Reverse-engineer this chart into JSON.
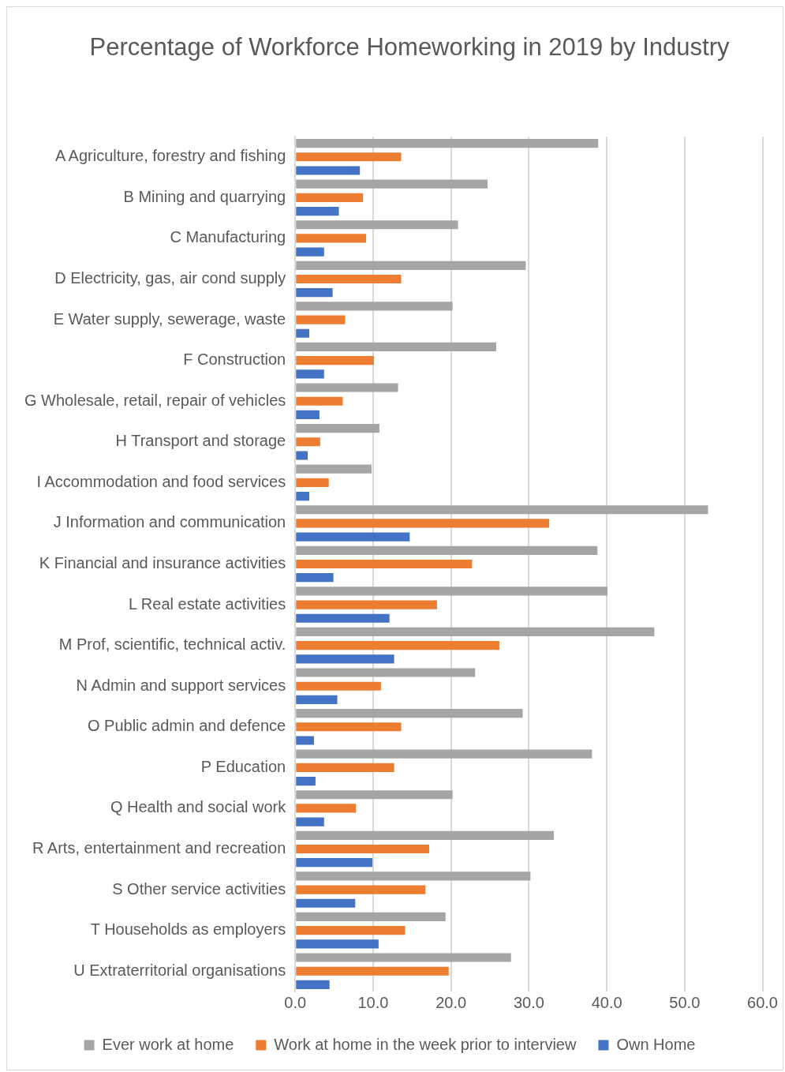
{
  "chart_data": {
    "type": "bar",
    "orientation": "horizontal",
    "title": "Percentage of Workforce Homeworking in 2019 by Industry",
    "categories": [
      "A Agriculture, forestry and fishing",
      "B Mining and quarrying",
      "C Manufacturing",
      "D Electricity, gas, air cond supply",
      "E Water supply, sewerage, waste",
      "F Construction",
      "G Wholesale, retail, repair of vehicles",
      "H Transport and storage",
      "I Accommodation and food services",
      "J Information and communication",
      "K Financial and insurance activities",
      "L Real estate activities",
      "M Prof, scientific, technical activ.",
      "N Admin and support services",
      "O Public admin and defence",
      "P Education",
      "Q Health and social work",
      "R Arts, entertainment and recreation",
      "S Other service activities",
      "T Households as employers",
      "U Extraterritorial organisations"
    ],
    "series": [
      {
        "name": "Ever work at home",
        "color": "#a5a5a5",
        "values": [
          38.9,
          24.7,
          20.9,
          29.6,
          20.2,
          25.8,
          13.2,
          10.8,
          9.8,
          53.0,
          38.8,
          40.1,
          46.1,
          23.1,
          29.2,
          38.1,
          20.2,
          33.2,
          30.2,
          19.3,
          27.7
        ]
      },
      {
        "name": "Work at home in the week prior to interview",
        "color": "#ed7d31",
        "values": [
          13.6,
          8.7,
          9.1,
          13.6,
          6.4,
          10.1,
          6.1,
          3.2,
          4.3,
          32.6,
          22.7,
          18.2,
          26.2,
          11.0,
          13.6,
          12.7,
          7.8,
          17.2,
          16.7,
          14.1,
          19.7
        ]
      },
      {
        "name": "Own Home",
        "color": "#4472c4",
        "values": [
          8.3,
          5.6,
          3.7,
          4.8,
          1.8,
          3.7,
          3.1,
          1.6,
          1.8,
          14.7,
          4.9,
          12.1,
          12.7,
          5.4,
          2.4,
          2.6,
          3.7,
          9.9,
          7.7,
          10.7,
          4.4
        ]
      }
    ],
    "xlim": [
      0,
      60
    ],
    "xticks": [
      {
        "value": 0,
        "label": "0.0"
      },
      {
        "value": 10,
        "label": "10.0"
      },
      {
        "value": 20,
        "label": "20.0"
      },
      {
        "value": 30,
        "label": "30.0"
      },
      {
        "value": 40,
        "label": "40.0"
      },
      {
        "value": 50,
        "label": "50.0"
      },
      {
        "value": 60,
        "label": "60.0"
      }
    ],
    "grid": "x",
    "legend": "bottom"
  }
}
